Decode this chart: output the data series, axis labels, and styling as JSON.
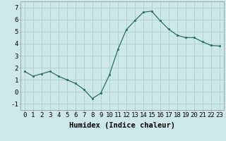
{
  "x": [
    0,
    1,
    2,
    3,
    4,
    5,
    6,
    7,
    8,
    9,
    10,
    11,
    12,
    13,
    14,
    15,
    16,
    17,
    18,
    19,
    20,
    21,
    22,
    23
  ],
  "y": [
    1.7,
    1.3,
    1.5,
    1.7,
    1.3,
    1.0,
    0.7,
    0.2,
    -0.55,
    -0.1,
    1.4,
    3.5,
    5.15,
    5.9,
    6.6,
    6.7,
    5.9,
    5.2,
    4.7,
    4.5,
    4.5,
    4.15,
    3.85,
    3.8
  ],
  "xlabel": "Humidex (Indice chaleur)",
  "bg_color": "#cde8e8",
  "grid_color": "#b0cccc",
  "line_color": "#2a6e68",
  "marker_color": "#2a6e68",
  "ylim": [
    -1.5,
    7.5
  ],
  "xlim": [
    -0.5,
    23.5
  ],
  "yticks": [
    -1,
    0,
    1,
    2,
    3,
    4,
    5,
    6,
    7
  ],
  "xticks": [
    0,
    1,
    2,
    3,
    4,
    5,
    6,
    7,
    8,
    9,
    10,
    11,
    12,
    13,
    14,
    15,
    16,
    17,
    18,
    19,
    20,
    21,
    22,
    23
  ],
  "xlabel_fontsize": 7.5,
  "tick_fontsize": 6.5
}
